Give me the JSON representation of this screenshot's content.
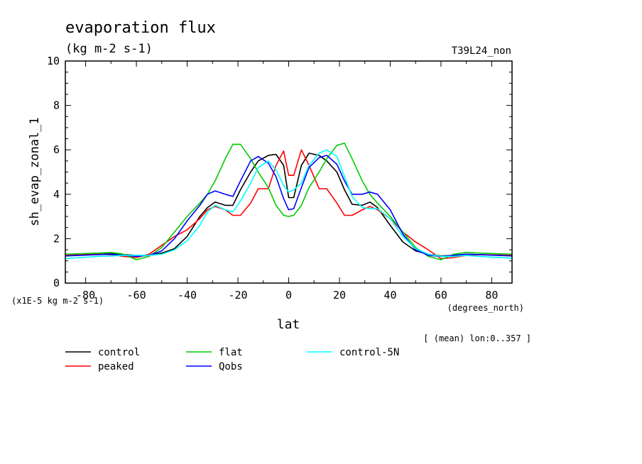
{
  "chart_data": {
    "type": "line",
    "title": "evaporation flux",
    "units": "(kg m-2 s-1)",
    "run_label": "T39L24_non",
    "ylabel": "sh_evap_zonal_1",
    "xlabel": "lat",
    "x_units": "(degrees_north)",
    "y_scale_note": "(x1E-5 kg m-2 s-1)",
    "footnote": "[ (mean) lon:0..357 ]",
    "xlim": [
      -88,
      88
    ],
    "ylim": [
      0,
      10
    ],
    "x_ticks": [
      -80,
      -60,
      -40,
      -20,
      0,
      20,
      40,
      60,
      80
    ],
    "x_tick_labels": [
      "-80",
      "-60",
      "-40",
      "-20",
      "0",
      "20",
      "40",
      "60",
      "80"
    ],
    "y_ticks": [
      0,
      2,
      4,
      6,
      8,
      10
    ],
    "y_tick_labels": [
      "0",
      "2",
      "4",
      "6",
      "8",
      "10"
    ],
    "grid": false,
    "legend_position": "below",
    "x": [
      -88,
      -75,
      -70,
      -65,
      -60,
      -55,
      -50,
      -45,
      -40,
      -35,
      -32,
      -29,
      -25,
      -22,
      -19,
      -15,
      -12,
      -8,
      -5,
      -2,
      0,
      2,
      5,
      8,
      12,
      15,
      19,
      22,
      25,
      29,
      32,
      35,
      40,
      45,
      50,
      55,
      60,
      65,
      70,
      75,
      88
    ],
    "series": [
      {
        "name": "control",
        "color": "#000000",
        "values": [
          1.25,
          1.3,
          1.32,
          1.28,
          1.25,
          1.25,
          1.35,
          1.55,
          2.1,
          3.0,
          3.4,
          3.65,
          3.5,
          3.5,
          4.2,
          5.0,
          5.5,
          5.75,
          5.8,
          5.3,
          3.85,
          3.85,
          5.3,
          5.85,
          5.75,
          5.5,
          5.0,
          4.2,
          3.55,
          3.5,
          3.65,
          3.4,
          2.6,
          1.85,
          1.45,
          1.3,
          1.22,
          1.25,
          1.3,
          1.28,
          1.25
        ]
      },
      {
        "name": "peaked",
        "color": "#ff0000",
        "values": [
          1.25,
          1.3,
          1.28,
          1.2,
          1.15,
          1.3,
          1.7,
          2.1,
          2.4,
          2.9,
          3.3,
          3.45,
          3.3,
          3.05,
          3.05,
          3.6,
          4.25,
          4.25,
          5.3,
          5.95,
          4.85,
          4.85,
          6.0,
          5.3,
          4.25,
          4.25,
          3.6,
          3.05,
          3.05,
          3.3,
          3.45,
          3.3,
          2.9,
          2.3,
          1.85,
          1.5,
          1.1,
          1.15,
          1.25,
          1.28,
          1.25
        ]
      },
      {
        "name": "flat",
        "color": "#00cc00",
        "values": [
          1.3,
          1.35,
          1.38,
          1.3,
          1.05,
          1.2,
          1.6,
          2.3,
          3.0,
          3.6,
          4.0,
          4.6,
          5.6,
          6.25,
          6.25,
          5.6,
          5.0,
          4.3,
          3.5,
          3.05,
          3.0,
          3.05,
          3.5,
          4.3,
          5.0,
          5.6,
          6.2,
          6.3,
          5.6,
          4.6,
          4.0,
          3.6,
          3.0,
          2.3,
          1.6,
          1.2,
          1.05,
          1.3,
          1.38,
          1.35,
          1.3
        ]
      },
      {
        "name": "Qobs",
        "color": "#0000ff",
        "values": [
          1.22,
          1.28,
          1.3,
          1.25,
          1.2,
          1.25,
          1.45,
          2.0,
          2.8,
          3.5,
          4.0,
          4.15,
          4.0,
          3.9,
          4.6,
          5.5,
          5.7,
          5.4,
          4.8,
          3.8,
          3.3,
          3.35,
          4.3,
          5.2,
          5.65,
          5.75,
          5.35,
          4.6,
          4.0,
          4.0,
          4.1,
          4.0,
          3.3,
          2.2,
          1.5,
          1.25,
          1.2,
          1.25,
          1.3,
          1.28,
          1.22
        ]
      },
      {
        "name": "control-5N",
        "color": "#00ffff",
        "values": [
          1.1,
          1.2,
          1.22,
          1.25,
          1.25,
          1.25,
          1.3,
          1.5,
          1.9,
          2.6,
          3.2,
          3.5,
          3.3,
          3.2,
          3.7,
          4.5,
          5.2,
          5.5,
          5.1,
          4.4,
          4.1,
          4.2,
          4.5,
          5.3,
          5.85,
          6.0,
          5.7,
          4.8,
          3.9,
          3.4,
          3.35,
          3.35,
          2.9,
          2.1,
          1.55,
          1.3,
          1.2,
          1.2,
          1.25,
          1.2,
          1.12
        ]
      }
    ]
  }
}
